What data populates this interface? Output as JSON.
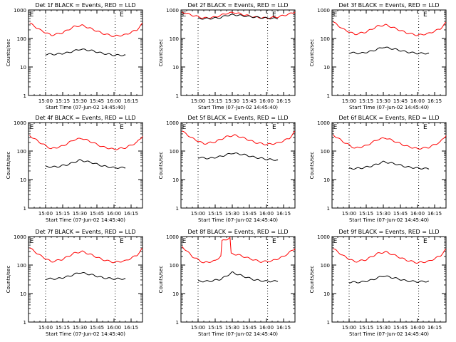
{
  "chart_data": [
    {
      "type": "line",
      "title": "Det 1f BLACK = Events, RED = LLD",
      "xlabel": "Start Time (07-Jun-02 14:45:40)",
      "ylabel": "Counts/sec",
      "yscale": "log",
      "ylim": [
        1,
        1000
      ],
      "xlim": [
        "14:45",
        "16:25"
      ],
      "x_ticks": [
        "15:00",
        "15:15",
        "15:30",
        "15:45",
        "16:00",
        "16:15"
      ],
      "y_ticks": [
        "1",
        "10",
        "100",
        "1000"
      ],
      "markers": [
        {
          "label": "E",
          "x": "14:46"
        },
        {
          "label": "E",
          "x": "16:05"
        }
      ],
      "vertical_dotted_lines": [
        "15:00",
        "16:01"
      ],
      "series": [
        {
          "color": "#ff0000",
          "x": [
            "14:46",
            "14:55",
            "15:05",
            "15:15",
            "15:25",
            "15:32",
            "15:40",
            "15:50",
            "16:00",
            "16:10",
            "16:20",
            "16:25"
          ],
          "values": [
            350,
            200,
            130,
            160,
            260,
            290,
            220,
            150,
            120,
            135,
            200,
            330
          ]
        },
        {
          "color": "#000000",
          "x": [
            "15:00",
            "15:10",
            "15:20",
            "15:30",
            "15:40",
            "15:50",
            "16:00",
            "16:10"
          ],
          "values": [
            28,
            28,
            32,
            42,
            38,
            30,
            26,
            26
          ]
        }
      ]
    },
    {
      "type": "line",
      "title": "Det 2f BLACK = Events, RED = LLD",
      "xlabel": "Start Time (07-Jun-02 14:45:40)",
      "ylabel": "Counts/sec",
      "yscale": "log",
      "ylim": [
        1,
        1000
      ],
      "xlim": [
        "14:45",
        "16:25"
      ],
      "x_ticks": [
        "15:00",
        "15:15",
        "15:30",
        "15:45",
        "16:00",
        "16:15"
      ],
      "y_ticks": [
        "1",
        "10",
        "100",
        "1000"
      ],
      "markers": [
        {
          "label": "E",
          "x": "14:46"
        },
        {
          "label": "E",
          "x": "16:05"
        }
      ],
      "vertical_dotted_lines": [
        "15:00",
        "16:01"
      ],
      "series": [
        {
          "color": "#ff0000",
          "x": [
            "14:46",
            "14:55",
            "15:05",
            "15:15",
            "15:25",
            "15:32",
            "15:40",
            "15:50",
            "16:00",
            "16:10",
            "16:20",
            "16:25"
          ],
          "values": [
            850,
            650,
            520,
            560,
            760,
            820,
            680,
            560,
            520,
            570,
            720,
            850
          ]
        },
        {
          "color": "#000000",
          "x": [
            "15:00",
            "15:10",
            "15:20",
            "15:25",
            "15:32",
            "15:40",
            "15:50",
            "16:00",
            "16:10"
          ],
          "values": [
            500,
            500,
            540,
            650,
            680,
            620,
            560,
            520,
            500
          ]
        }
      ]
    },
    {
      "type": "line",
      "title": "Det 3f BLACK = Events, RED = LLD",
      "xlabel": "Start Time (07-Jun-02 14:45:40)",
      "ylabel": "Counts/sec",
      "yscale": "log",
      "ylim": [
        1,
        1000
      ],
      "xlim": [
        "14:45",
        "16:25"
      ],
      "x_ticks": [
        "15:00",
        "15:15",
        "15:30",
        "15:45",
        "16:00",
        "16:15"
      ],
      "y_ticks": [
        "1",
        "10",
        "100",
        "1000"
      ],
      "markers": [
        {
          "label": "E",
          "x": "14:46"
        },
        {
          "label": "E",
          "x": "16:05"
        }
      ],
      "vertical_dotted_lines": [
        "15:00",
        "16:01"
      ],
      "series": [
        {
          "color": "#ff0000",
          "x": [
            "14:46",
            "14:55",
            "15:05",
            "15:15",
            "15:25",
            "15:32",
            "15:40",
            "15:50",
            "16:00",
            "16:10",
            "16:20",
            "16:25"
          ],
          "values": [
            380,
            210,
            140,
            170,
            270,
            300,
            230,
            160,
            130,
            150,
            220,
            360
          ]
        },
        {
          "color": "#000000",
          "x": [
            "15:00",
            "15:10",
            "15:20",
            "15:30",
            "15:40",
            "15:50",
            "16:00",
            "16:10"
          ],
          "values": [
            32,
            30,
            36,
            50,
            42,
            34,
            30,
            30
          ]
        }
      ]
    },
    {
      "type": "line",
      "title": "Det 4f BLACK = Events, RED = LLD",
      "xlabel": "Start Time (07-Jun-02 14:45:40)",
      "ylabel": "Counts/sec",
      "yscale": "log",
      "ylim": [
        1,
        1000
      ],
      "xlim": [
        "14:45",
        "16:25"
      ],
      "x_ticks": [
        "15:00",
        "15:15",
        "15:30",
        "15:45",
        "16:00",
        "16:15"
      ],
      "y_ticks": [
        "1",
        "10",
        "100",
        "1000"
      ],
      "markers": [
        {
          "label": "E",
          "x": "14:46"
        },
        {
          "label": "E",
          "x": "16:05"
        }
      ],
      "vertical_dotted_lines": [
        "15:00",
        "16:01"
      ],
      "series": [
        {
          "color": "#ff0000",
          "x": [
            "14:46",
            "14:55",
            "15:05",
            "15:15",
            "15:25",
            "15:32",
            "15:40",
            "15:50",
            "16:00",
            "16:10",
            "16:20",
            "16:25"
          ],
          "values": [
            350,
            200,
            120,
            150,
            250,
            280,
            210,
            140,
            115,
            130,
            200,
            330
          ]
        },
        {
          "color": "#000000",
          "x": [
            "15:00",
            "15:10",
            "15:20",
            "15:30",
            "15:40",
            "15:50",
            "16:00",
            "16:10"
          ],
          "values": [
            28,
            28,
            34,
            48,
            40,
            30,
            26,
            26
          ]
        }
      ]
    },
    {
      "type": "line",
      "title": "Det 5f BLACK = Events, RED = LLD",
      "xlabel": "Start Time (07-Jun-02 14:45:40)",
      "ylabel": "Counts/sec",
      "yscale": "log",
      "ylim": [
        1,
        1000
      ],
      "xlim": [
        "14:45",
        "16:25"
      ],
      "x_ticks": [
        "15:00",
        "15:15",
        "15:30",
        "15:45",
        "16:00",
        "16:15"
      ],
      "y_ticks": [
        "1",
        "10",
        "100",
        "1000"
      ],
      "markers": [
        {
          "label": "E",
          "x": "14:46"
        },
        {
          "label": "E",
          "x": "16:05"
        }
      ],
      "vertical_dotted_lines": [
        "15:00",
        "16:01"
      ],
      "series": [
        {
          "color": "#ff0000",
          "x": [
            "14:46",
            "14:55",
            "15:05",
            "15:15",
            "15:25",
            "15:32",
            "15:40",
            "15:50",
            "16:00",
            "16:10",
            "16:20",
            "16:25"
          ],
          "values": [
            500,
            280,
            180,
            210,
            320,
            360,
            290,
            200,
            170,
            190,
            280,
            480
          ]
        },
        {
          "color": "#000000",
          "x": [
            "15:00",
            "15:10",
            "15:20",
            "15:30",
            "15:40",
            "15:50",
            "16:00",
            "16:10"
          ],
          "values": [
            60,
            55,
            65,
            85,
            75,
            60,
            52,
            48
          ]
        }
      ]
    },
    {
      "type": "line",
      "title": "Det 6f BLACK = Events, RED = LLD",
      "xlabel": "Start Time (07-Jun-02 14:45:40)",
      "ylabel": "Counts/sec",
      "yscale": "log",
      "ylim": [
        1,
        1000
      ],
      "xlim": [
        "14:45",
        "16:25"
      ],
      "x_ticks": [
        "15:00",
        "15:15",
        "15:30",
        "15:45",
        "16:00",
        "16:15"
      ],
      "y_ticks": [
        "1",
        "10",
        "100",
        "1000"
      ],
      "markers": [
        {
          "label": "E",
          "x": "14:46"
        },
        {
          "label": "E",
          "x": "16:05"
        }
      ],
      "vertical_dotted_lines": [
        "15:00",
        "16:01"
      ],
      "series": [
        {
          "color": "#ff0000",
          "x": [
            "14:46",
            "14:55",
            "15:05",
            "15:15",
            "15:25",
            "15:32",
            "15:40",
            "15:50",
            "16:00",
            "16:10",
            "16:20",
            "16:25"
          ],
          "values": [
            370,
            210,
            125,
            155,
            255,
            290,
            220,
            150,
            120,
            135,
            210,
            350
          ]
        },
        {
          "color": "#000000",
          "x": [
            "15:00",
            "15:10",
            "15:20",
            "15:30",
            "15:40",
            "15:50",
            "16:00",
            "16:10"
          ],
          "values": [
            24,
            25,
            30,
            42,
            36,
            28,
            25,
            24
          ]
        }
      ]
    },
    {
      "type": "line",
      "title": "Det 7f BLACK = Events, RED = LLD",
      "xlabel": "Start Time (07-Jun-02 14:45:40)",
      "ylabel": "Counts/sec",
      "yscale": "log",
      "ylim": [
        1,
        1000
      ],
      "xlim": [
        "14:45",
        "16:25"
      ],
      "x_ticks": [
        "15:00",
        "15:15",
        "15:30",
        "15:45",
        "16:00",
        "16:15"
      ],
      "y_ticks": [
        "1",
        "10",
        "100",
        "1000"
      ],
      "markers": [
        {
          "label": "E",
          "x": "14:46"
        },
        {
          "label": "E",
          "x": "16:05"
        }
      ],
      "vertical_dotted_lines": [
        "15:00",
        "16:01"
      ],
      "series": [
        {
          "color": "#ff0000",
          "x": [
            "14:46",
            "14:55",
            "15:05",
            "15:15",
            "15:25",
            "15:32",
            "15:40",
            "15:50",
            "16:00",
            "16:10",
            "16:20",
            "16:25"
          ],
          "values": [
            400,
            220,
            130,
            160,
            260,
            300,
            230,
            155,
            125,
            140,
            220,
            380
          ]
        },
        {
          "color": "#000000",
          "x": [
            "15:00",
            "15:10",
            "15:20",
            "15:30",
            "15:40",
            "15:50",
            "16:00",
            "16:10"
          ],
          "values": [
            33,
            33,
            40,
            55,
            46,
            36,
            33,
            33
          ]
        }
      ]
    },
    {
      "type": "line",
      "title": "Det 8f BLACK = Events, RED = LLD",
      "xlabel": "Start Time (07-Jun-02 14:45:40)",
      "ylabel": "Counts/sec",
      "yscale": "log",
      "ylim": [
        1,
        1000
      ],
      "xlim": [
        "14:45",
        "16:25"
      ],
      "x_ticks": [
        "15:00",
        "15:15",
        "15:30",
        "15:45",
        "16:00",
        "16:15"
      ],
      "y_ticks": [
        "1",
        "10",
        "100",
        "1000"
      ],
      "markers": [
        {
          "label": "E",
          "x": "14:46"
        },
        {
          "label": "E",
          "x": "16:05"
        }
      ],
      "vertical_dotted_lines": [
        "15:00",
        "16:01"
      ],
      "series": [
        {
          "color": "#ff0000",
          "x": [
            "14:46",
            "14:55",
            "15:05",
            "15:15",
            "15:20",
            "15:21",
            "15:28",
            "15:29",
            "15:35",
            "15:45",
            "15:55",
            "16:05",
            "16:15",
            "16:25"
          ],
          "values": [
            450,
            200,
            120,
            140,
            210,
            700,
            900,
            250,
            230,
            170,
            130,
            140,
            200,
            380
          ]
        },
        {
          "color": "#000000",
          "x": [
            "15:00",
            "15:10",
            "15:20",
            "15:30",
            "15:40",
            "15:50",
            "16:00",
            "16:10"
          ],
          "values": [
            27,
            27,
            32,
            55,
            40,
            30,
            27,
            27
          ]
        }
      ]
    },
    {
      "type": "line",
      "title": "Det 9f BLACK = Events, RED = LLD",
      "xlabel": "Start Time (07-Jun-02 14:45:40)",
      "ylabel": "Counts/sec",
      "yscale": "log",
      "ylim": [
        1,
        1000
      ],
      "xlim": [
        "14:45",
        "16:25"
      ],
      "x_ticks": [
        "15:00",
        "15:15",
        "15:30",
        "15:45",
        "16:00",
        "16:15"
      ],
      "y_ticks": [
        "1",
        "10",
        "100",
        "1000"
      ],
      "markers": [
        {
          "label": "E",
          "x": "14:46"
        },
        {
          "label": "E",
          "x": "16:05"
        }
      ],
      "vertical_dotted_lines": [
        "15:00",
        "16:01"
      ],
      "series": [
        {
          "color": "#ff0000",
          "x": [
            "14:46",
            "14:55",
            "15:05",
            "15:15",
            "15:25",
            "15:32",
            "15:40",
            "15:50",
            "16:00",
            "16:10",
            "16:20",
            "16:25"
          ],
          "values": [
            380,
            210,
            130,
            155,
            255,
            290,
            220,
            150,
            120,
            135,
            210,
            360
          ]
        },
        {
          "color": "#000000",
          "x": [
            "15:00",
            "15:10",
            "15:20",
            "15:30",
            "15:40",
            "15:50",
            "16:00",
            "16:10"
          ],
          "values": [
            25,
            25,
            30,
            42,
            35,
            28,
            26,
            27
          ]
        }
      ]
    }
  ]
}
